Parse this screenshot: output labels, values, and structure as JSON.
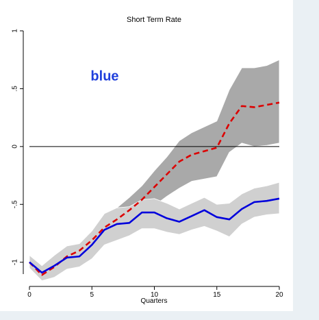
{
  "chart_data": {
    "type": "line",
    "title": "Short Term Rate",
    "xlabel": "Quarters",
    "ylabel": "",
    "xlim": [
      0,
      20
    ],
    "ylim": [
      -1.15,
      1
    ],
    "grid": false,
    "x_ticks": [
      0,
      5,
      10,
      15,
      20
    ],
    "x_tick_labels": [
      "0",
      "5",
      "10",
      "15",
      "20"
    ],
    "y_ticks": [
      -1,
      -0.5,
      0,
      0.5,
      1
    ],
    "y_tick_labels": [
      "-1",
      "-.5",
      "0",
      ".5",
      "1"
    ],
    "annotation": {
      "text": "blue",
      "color": "#1f3fdc",
      "x": 4.9,
      "y": 0.57
    },
    "x": [
      0,
      1,
      2,
      3,
      4,
      5,
      6,
      7,
      8,
      9,
      10,
      11,
      12,
      13,
      14,
      15,
      16,
      17,
      18,
      19,
      20
    ],
    "series": [
      {
        "style": "dashed",
        "color": "#dc0000",
        "values": [
          -1.0,
          -1.11,
          -1.04,
          -0.95,
          -0.9,
          -0.81,
          -0.7,
          -0.63,
          -0.55,
          -0.46,
          -0.35,
          -0.24,
          -0.13,
          -0.07,
          -0.04,
          -0.01,
          0.2,
          0.35,
          0.34,
          0.36,
          0.38
        ]
      },
      {
        "style": "solid",
        "color": "#0000dc",
        "values": [
          -1.0,
          -1.09,
          -1.03,
          -0.96,
          -0.95,
          -0.85,
          -0.72,
          -0.67,
          -0.66,
          -0.57,
          -0.57,
          -0.62,
          -0.65,
          -0.6,
          -0.55,
          -0.61,
          -0.63,
          -0.54,
          -0.48,
          -0.47,
          -0.45
        ]
      }
    ],
    "bands": [
      {
        "color": "#a9a9a9",
        "lower": [
          -1.02,
          -1.16,
          -1.1,
          -1.02,
          -0.98,
          -0.87,
          -0.78,
          -0.72,
          -0.66,
          -0.58,
          -0.51,
          -0.43,
          -0.36,
          -0.3,
          -0.28,
          -0.26,
          -0.05,
          0.03,
          0.0,
          0.01,
          0.03
        ],
        "upper": [
          -0.94,
          -1.05,
          -0.97,
          -0.88,
          -0.85,
          -0.75,
          -0.62,
          -0.53,
          -0.44,
          -0.34,
          -0.21,
          -0.09,
          0.05,
          0.12,
          0.17,
          0.22,
          0.49,
          0.68,
          0.68,
          0.7,
          0.75
        ]
      },
      {
        "color": "#d0d0d0",
        "lower": [
          -1.05,
          -1.16,
          -1.13,
          -1.06,
          -1.04,
          -0.97,
          -0.85,
          -0.81,
          -0.77,
          -0.71,
          -0.71,
          -0.74,
          -0.76,
          -0.72,
          -0.69,
          -0.73,
          -0.78,
          -0.67,
          -0.61,
          -0.59,
          -0.58
        ],
        "upper": [
          -0.94,
          -1.03,
          -0.94,
          -0.86,
          -0.84,
          -0.73,
          -0.58,
          -0.53,
          -0.52,
          -0.46,
          -0.45,
          -0.49,
          -0.54,
          -0.49,
          -0.44,
          -0.5,
          -0.49,
          -0.41,
          -0.36,
          -0.34,
          -0.31
        ]
      }
    ]
  }
}
